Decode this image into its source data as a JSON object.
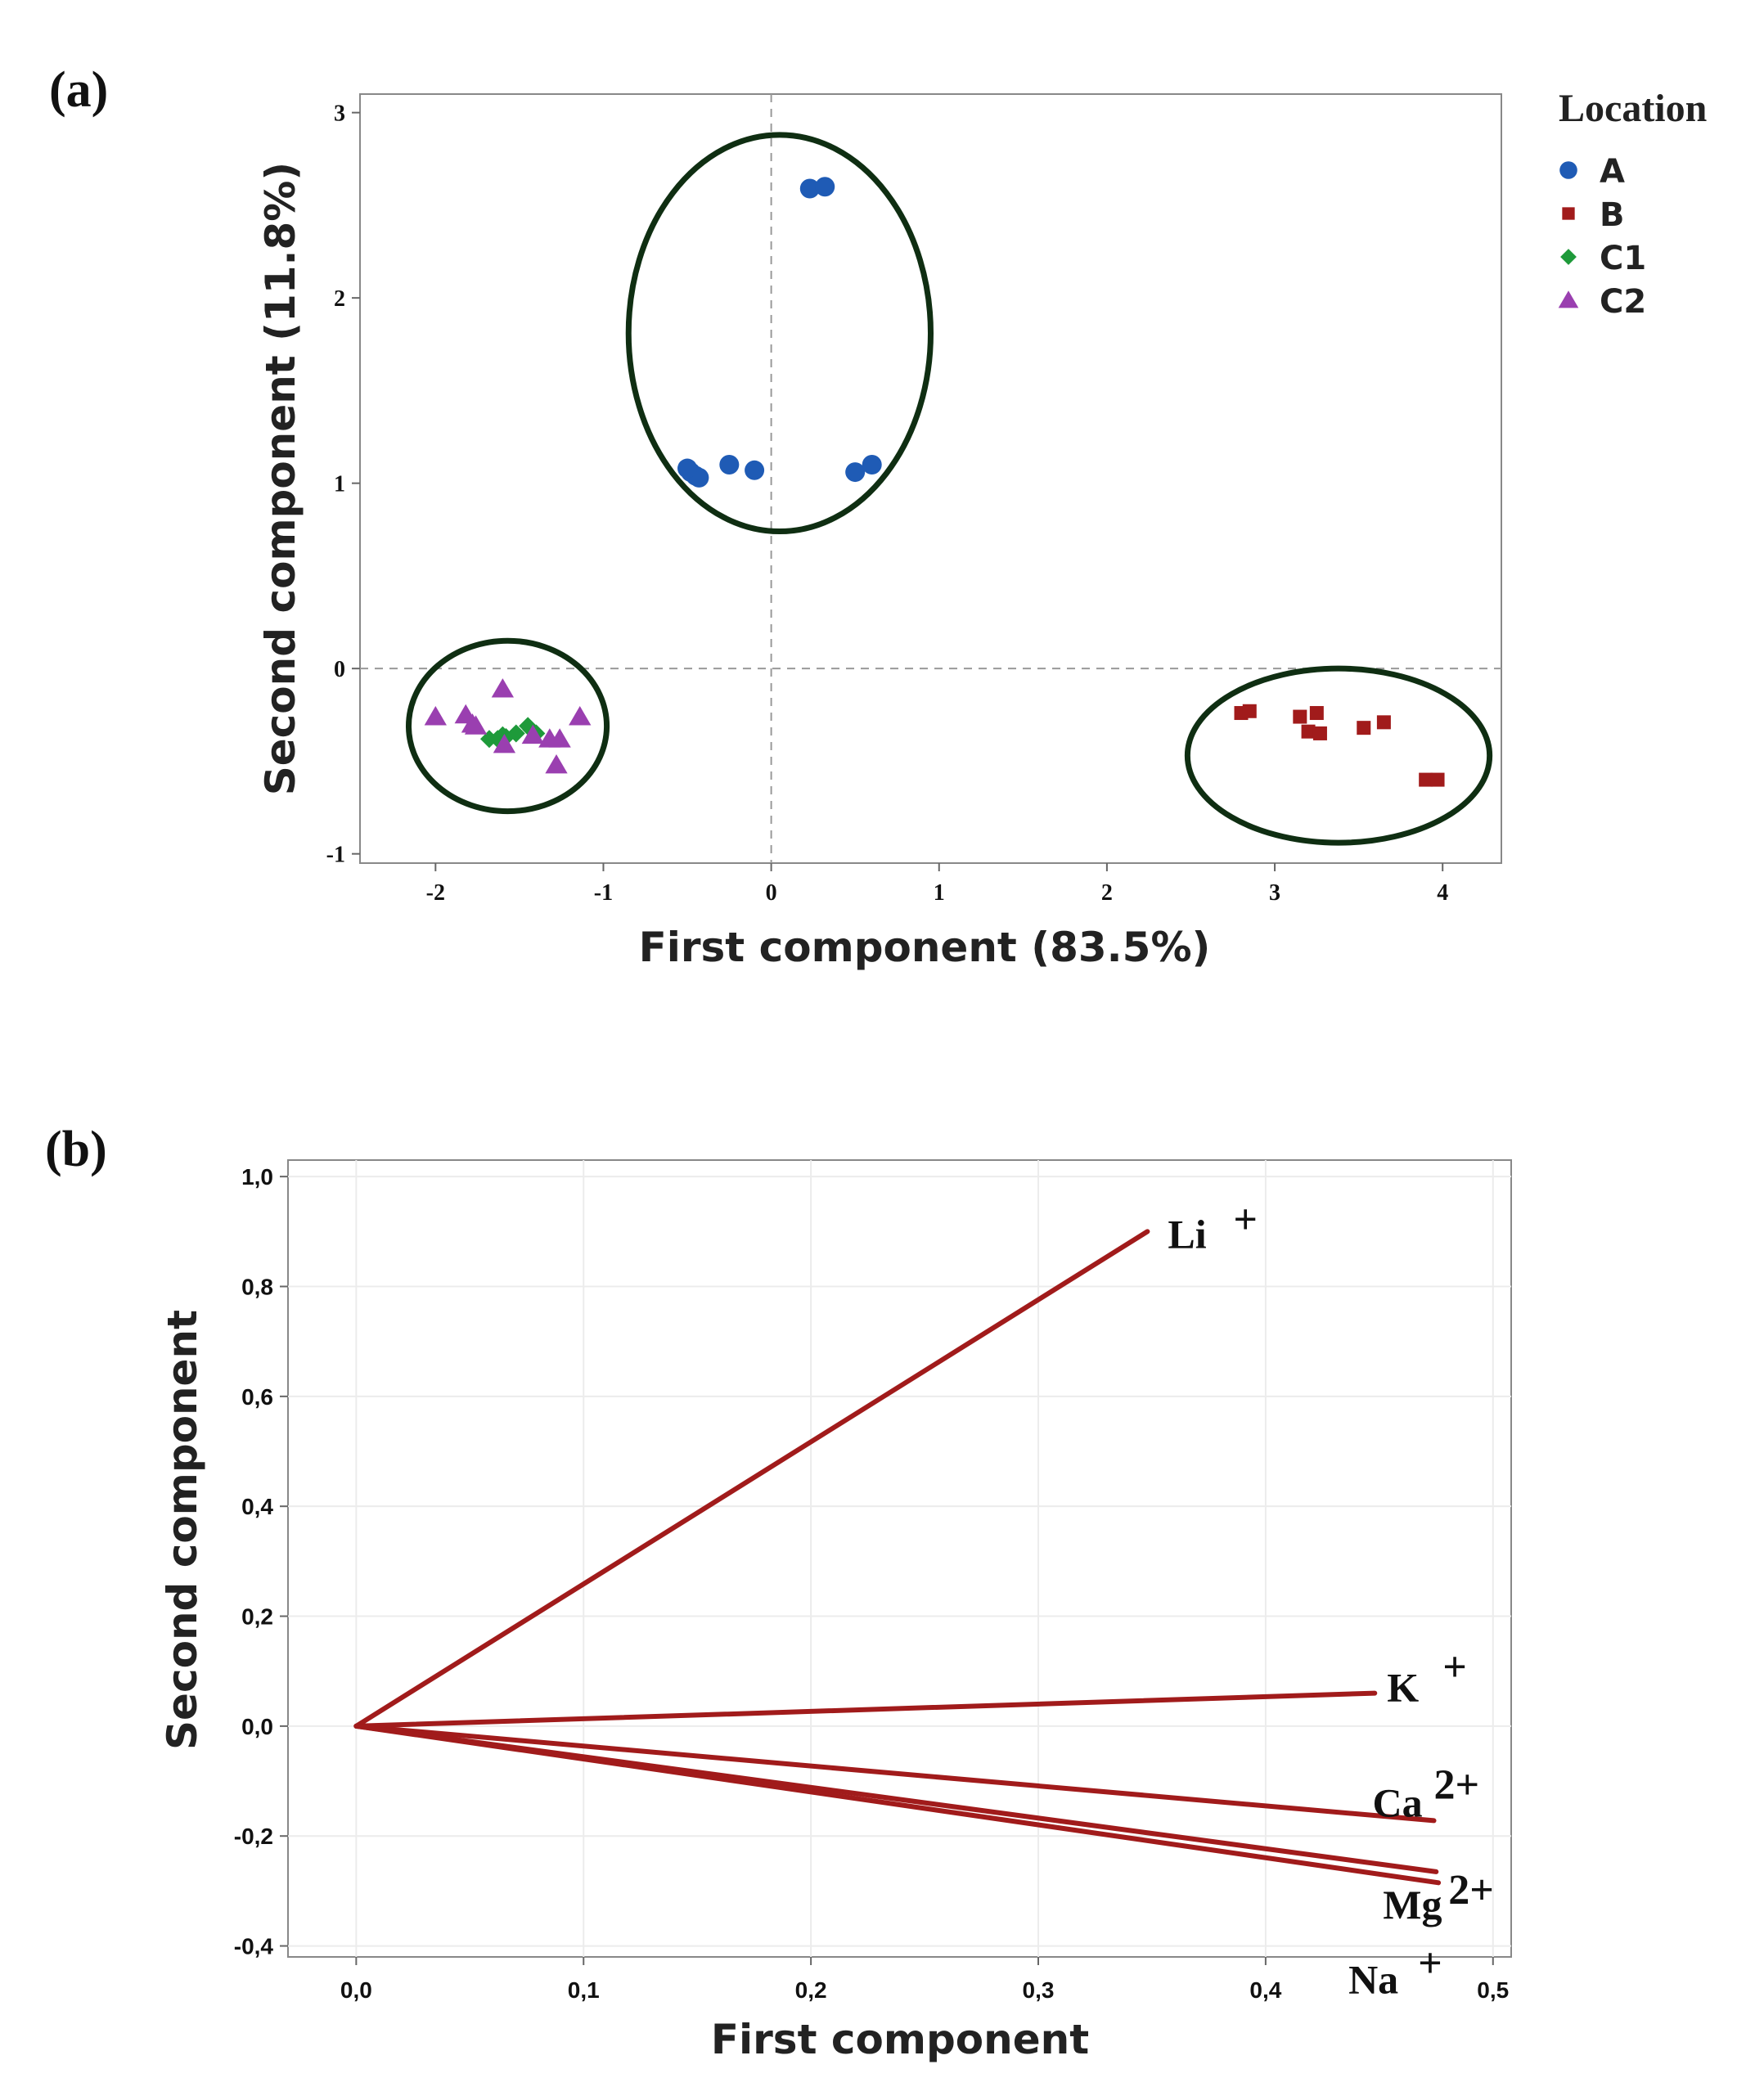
{
  "chart_data": [
    {
      "type": "scatter",
      "panel_label": "(a)",
      "xlabel": "First  component (83.5%)",
      "ylabel": "Second  component (11.8%)",
      "xlim": [
        -2.45,
        4.35
      ],
      "ylim": [
        -1.05,
        3.1
      ],
      "xticks": [
        -2,
        -1,
        0,
        1,
        2,
        3,
        4
      ],
      "yticks": [
        -1,
        0,
        1,
        2,
        3
      ],
      "reference_lines": {
        "x": 0,
        "y": 0,
        "style": "dashed"
      },
      "legend": {
        "title": "Location",
        "placement": "right-outside-top"
      },
      "series": [
        {
          "name": "A",
          "marker": "circle",
          "color": "#1f5bb5",
          "x": [
            0.23,
            0.32,
            -0.48,
            -0.45,
            -0.43,
            -0.25,
            -0.1,
            0.5,
            0.6,
            -0.5
          ],
          "y": [
            2.59,
            2.6,
            1.06,
            1.04,
            1.03,
            1.1,
            1.07,
            1.06,
            1.1,
            1.08
          ]
        },
        {
          "name": "B",
          "marker": "square",
          "color": "#a11b1b",
          "x": [
            2.8,
            2.85,
            3.15,
            3.25,
            3.2,
            3.27,
            3.53,
            3.65,
            3.9,
            3.97
          ],
          "y": [
            -0.24,
            -0.23,
            -0.26,
            -0.24,
            -0.34,
            -0.35,
            -0.32,
            -0.29,
            -0.6,
            -0.6
          ]
        },
        {
          "name": "C1",
          "marker": "diamond",
          "color": "#1e9a3a",
          "x": [
            -1.68,
            -1.63,
            -1.58,
            -1.52,
            -1.45,
            -1.43,
            -1.4,
            -1.6
          ],
          "y": [
            -0.38,
            -0.38,
            -0.37,
            -0.35,
            -0.31,
            -0.33,
            -0.35,
            -0.36
          ]
        },
        {
          "name": "C2",
          "marker": "triangle",
          "color": "#9a3fb0",
          "x": [
            -2.0,
            -1.82,
            -1.78,
            -1.76,
            -1.6,
            -1.59,
            -1.42,
            -1.32,
            -1.26,
            -1.28,
            -1.14
          ],
          "y": [
            -0.26,
            -0.25,
            -0.3,
            -0.31,
            -0.11,
            -0.41,
            -0.36,
            -0.38,
            -0.38,
            -0.52,
            -0.26
          ]
        }
      ],
      "ellipses": [
        {
          "cx": 0.05,
          "cy": 1.81,
          "rx": 0.9,
          "ry": 1.07
        },
        {
          "cx": -1.57,
          "cy": -0.31,
          "rx": 0.59,
          "ry": 0.46
        },
        {
          "cx": 3.38,
          "cy": -0.47,
          "rx": 0.9,
          "ry": 0.47
        }
      ]
    },
    {
      "type": "line",
      "panel_label": "(b)",
      "xlabel": "First  component",
      "ylabel": "Second  component",
      "xlim": [
        -0.03,
        0.508
      ],
      "ylim": [
        -0.42,
        1.03
      ],
      "xticks": [
        "0,0",
        "0,1",
        "0,2",
        "0,3",
        "0,4",
        "0,5"
      ],
      "xtick_values": [
        0,
        0.1,
        0.2,
        0.3,
        0.4,
        0.5
      ],
      "yticks": [
        "-0,4",
        "-0,2",
        "0,0",
        "0,2",
        "0,4",
        "0,6",
        "0,8",
        "1,0"
      ],
      "ytick_values": [
        -0.4,
        -0.2,
        0,
        0.2,
        0.4,
        0.6,
        0.8,
        1.0
      ],
      "grid": true,
      "line_color": "#a11b1b",
      "vectors": [
        {
          "base": "Li",
          "charge": "+",
          "x": 0.348,
          "y": 0.9
        },
        {
          "base": "K",
          "charge": "+",
          "x": 0.448,
          "y": 0.06
        },
        {
          "base": "Ca",
          "charge": "2+",
          "x": 0.474,
          "y": -0.172
        },
        {
          "base": "Mg",
          "charge": "2+",
          "x": 0.475,
          "y": -0.265
        },
        {
          "base": "Na",
          "charge": "+",
          "x": 0.476,
          "y": -0.285
        }
      ]
    }
  ]
}
